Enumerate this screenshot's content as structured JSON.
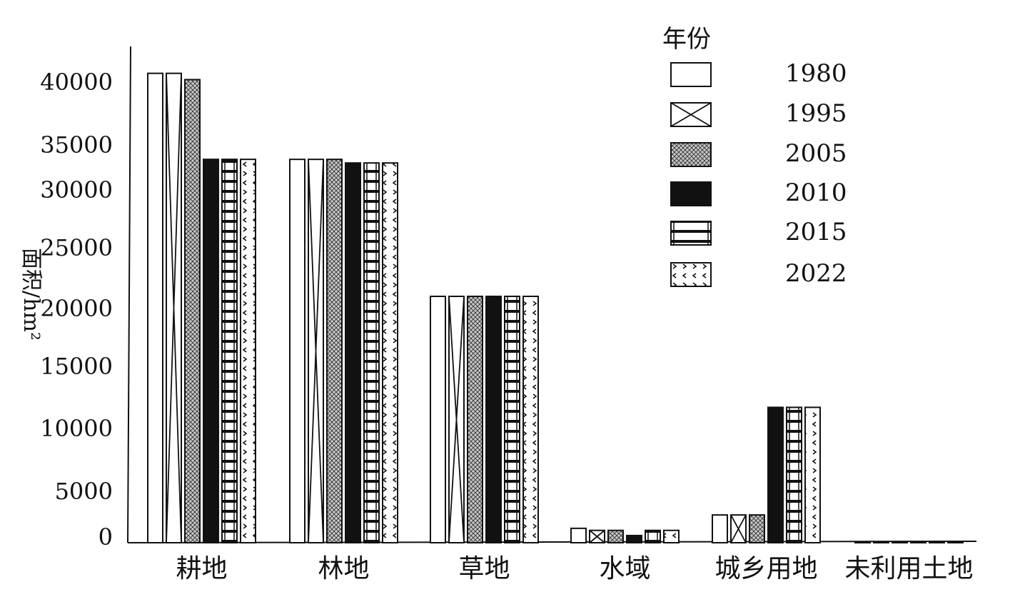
{
  "chart_data": {
    "type": "bar",
    "title": "",
    "ylabel": "面积/hm²",
    "xlabel": "",
    "categories": [
      "耕地",
      "林地",
      "草地",
      "水域",
      "城乡用地",
      "未利用土地"
    ],
    "yticks": [
      {
        "value": 0,
        "label": "0"
      },
      {
        "value": 5000,
        "label": "5000"
      },
      {
        "value": 10000,
        "label": "10000"
      },
      {
        "value": 15000,
        "label": "15000"
      },
      {
        "value": 20000,
        "label": "20000"
      },
      {
        "value": 25000,
        "label": "25000"
      },
      {
        "value": 30000,
        "label": "30000"
      },
      {
        "value": 35000,
        "label": "35000"
      },
      {
        "value": 40000,
        "label": "40000"
      }
    ],
    "legend_title": "年份",
    "legend_position": "top-right",
    "grid": false,
    "series": [
      {
        "name": "1980",
        "pattern": "plain",
        "values": [
          40700,
          33400,
          21000,
          1400,
          2700,
          100
        ]
      },
      {
        "name": "1995",
        "pattern": "cross",
        "values": [
          40700,
          33400,
          21000,
          1200,
          2700,
          100
        ]
      },
      {
        "name": "2005",
        "pattern": "hatch",
        "values": [
          40200,
          33400,
          21000,
          1200,
          2700,
          100
        ]
      },
      {
        "name": "2010",
        "pattern": "solid",
        "values": [
          33400,
          33000,
          21000,
          700,
          11700,
          100
        ]
      },
      {
        "name": "2015",
        "pattern": "hstripes",
        "values": [
          33400,
          33000,
          21000,
          1200,
          11700,
          100
        ]
      },
      {
        "name": "2022",
        "pattern": "dots",
        "values": [
          33400,
          33000,
          21000,
          1200,
          11700,
          100
        ]
      }
    ]
  },
  "colors": {
    "ink": "#111111",
    "paper": "#ffffff",
    "hatch": "#555555"
  }
}
